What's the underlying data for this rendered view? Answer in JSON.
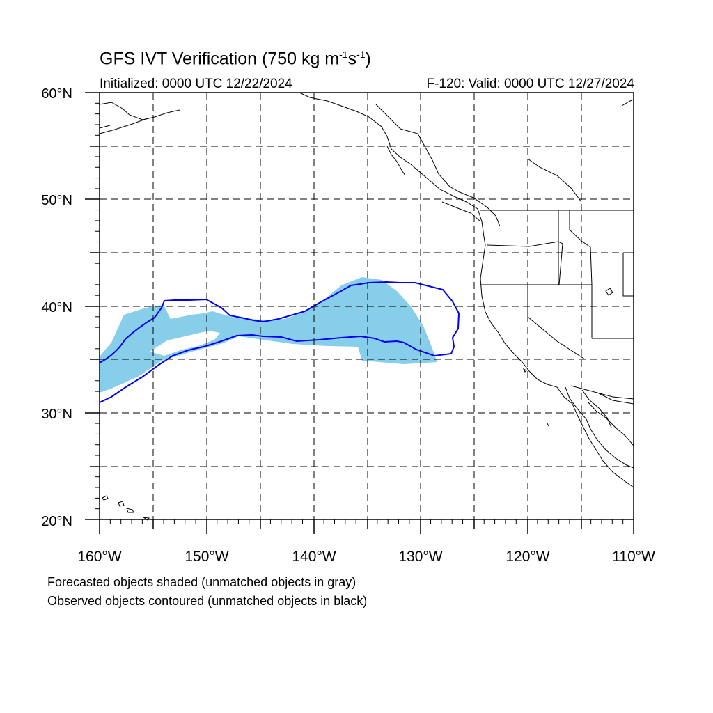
{
  "title": {
    "main": "GFS IVT Verification (750 kg m",
    "exp1": "-1",
    "mid": "s",
    "exp2": "-1",
    "close": ")"
  },
  "initialized": "Initialized: 0000 UTC 12/22/2024",
  "valid": "F-120: Valid: 0000 UTC 12/27/2024",
  "lat_labels": [
    "60°N",
    "50°N",
    "40°N",
    "30°N",
    "20°N"
  ],
  "lon_labels": [
    "160°W",
    "150°W",
    "140°W",
    "130°W",
    "120°W",
    "110°W"
  ],
  "legend": [
    "Forecasted objects shaded (unmatched objects in gray)",
    "Observed objects contoured (unmatched objects in black)"
  ],
  "colors": {
    "forecast_fill": "#87ceeb",
    "observed_contour": "#0000ee",
    "coastline": "#000000",
    "grid": "#000000"
  },
  "map_extent": {
    "lon_min": -160,
    "lon_max": -110,
    "lat_min": 20,
    "lat_max": 60,
    "grid_step_deg": 5
  }
}
